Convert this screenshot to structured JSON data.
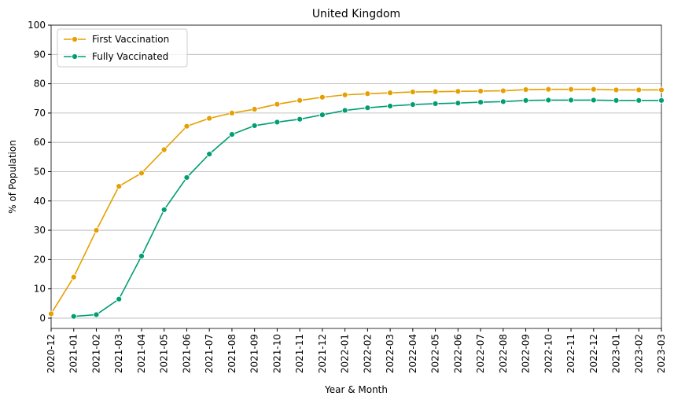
{
  "chart_data": {
    "type": "line",
    "title": "United Kingdom",
    "x_label": "Year & Month",
    "y_label": "% of Population",
    "categories": [
      "2020-12",
      "2021-01",
      "2021-02",
      "2021-03",
      "2021-04",
      "2021-05",
      "2021-06",
      "2021-07",
      "2021-08",
      "2021-09",
      "2021-10",
      "2021-11",
      "2021-12",
      "2022-01",
      "2022-02",
      "2022-03",
      "2022-04",
      "2022-05",
      "2022-06",
      "2022-07",
      "2022-08",
      "2022-09",
      "2022-10",
      "2022-11",
      "2022-12",
      "2023-01",
      "2023-02",
      "2023-03"
    ],
    "series": [
      {
        "name": "First Vaccination",
        "color": "#E69F00",
        "values": [
          1.5,
          14,
          30,
          45,
          49.5,
          57.5,
          65.5,
          68.2,
          70,
          71.3,
          73,
          74.3,
          75.4,
          76.2,
          76.6,
          76.9,
          77.2,
          77.3,
          77.4,
          77.5,
          77.6,
          78,
          78.1,
          78.1,
          78.1,
          77.9,
          77.9,
          77.9
        ]
      },
      {
        "name": "Fully Vaccinated",
        "color": "#009E73",
        "values": [
          null,
          0.6,
          1.2,
          6.5,
          21.2,
          37,
          48,
          56,
          62.7,
          65.7,
          66.9,
          67.9,
          69.4,
          70.9,
          71.8,
          72.4,
          72.9,
          73.2,
          73.4,
          73.7,
          73.9,
          74.3,
          74.4,
          74.4,
          74.4,
          74.3,
          74.3,
          74.3
        ]
      }
    ],
    "ylim": [
      -3.5,
      100
    ],
    "yticks": [
      0,
      10,
      20,
      30,
      40,
      50,
      60,
      70,
      80,
      90,
      100
    ],
    "grid": true,
    "legend": "upper left"
  }
}
